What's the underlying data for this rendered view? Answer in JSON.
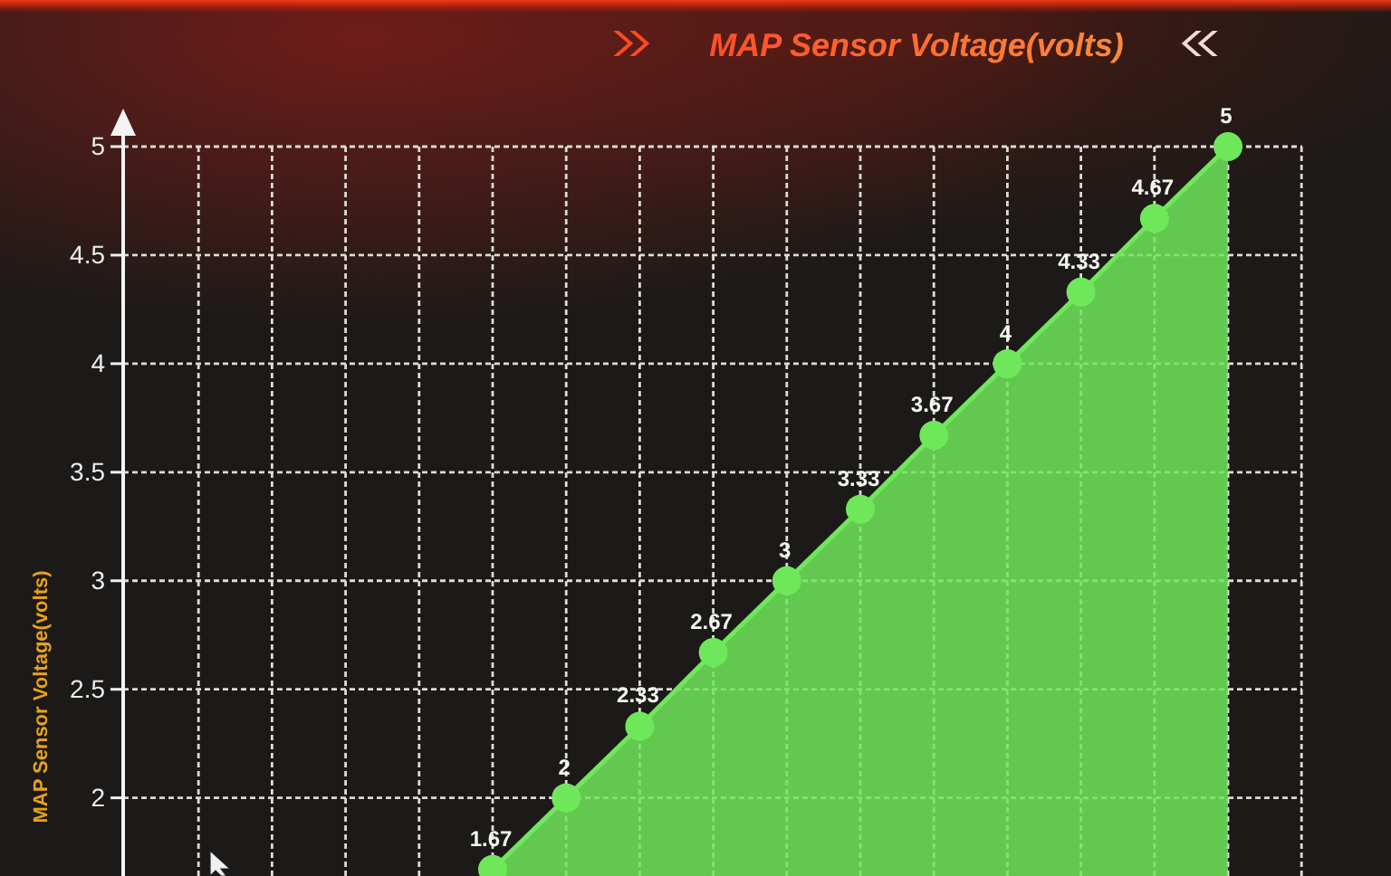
{
  "chart_data": {
    "type": "area",
    "title": "MAP Sensor Voltage(volts)",
    "ylabel": "MAP Sensor Voltage(volts)",
    "categories": [
      null,
      null,
      null,
      null,
      null,
      null,
      null,
      null,
      null,
      null,
      null
    ],
    "values": [
      1.67,
      2,
      2.33,
      2.67,
      3,
      3.33,
      3.67,
      4,
      4.33,
      4.67,
      5
    ],
    "color": "#6ee85a",
    "ylim": [
      1.64,
      5
    ],
    "yticks": [
      2,
      2.5,
      3,
      3.5,
      4,
      4.5,
      5
    ],
    "grid": true,
    "tick_labels": "y",
    "marker": "circle",
    "line_style": "solid",
    "data_labels": true
  }
}
